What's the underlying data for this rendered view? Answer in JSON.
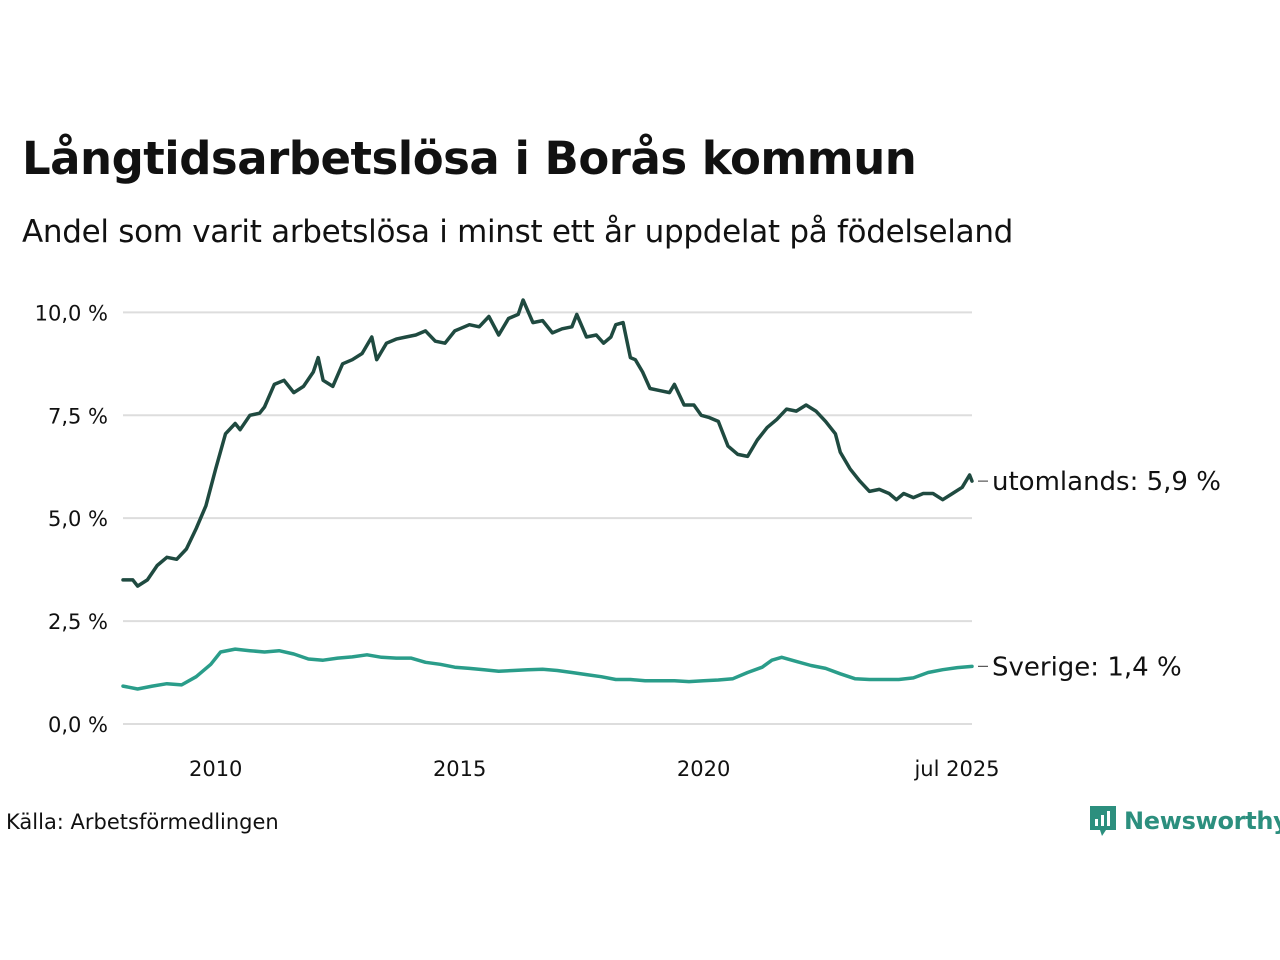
{
  "title": "Långtidsarbetslösa i Borås kommun",
  "subtitle": "Andel som varit arbetslösa i minst ett år uppdelat på födelseland",
  "source": "Källa: Arbetsförmedlingen",
  "brand": {
    "name": "Newsworthy",
    "color": "#2c8f7e",
    "icon": "newsworthy-logo-icon"
  },
  "chart_data": {
    "type": "line",
    "ylim": [
      0,
      10.3
    ],
    "xlim": [
      2008.1,
      2025.5
    ],
    "grid": true,
    "y_ticks": [
      {
        "value": 0,
        "label": "0,0 %"
      },
      {
        "value": 2.5,
        "label": "2,5 %"
      },
      {
        "value": 5,
        "label": "5,0 %"
      },
      {
        "value": 7.5,
        "label": "7,5 %"
      },
      {
        "value": 10,
        "label": "10,0 %"
      }
    ],
    "x_ticks": [
      {
        "value": 2010,
        "label": "2010"
      },
      {
        "value": 2015,
        "label": "2015"
      },
      {
        "value": 2020,
        "label": "2020"
      },
      {
        "value": 2025.5,
        "label": "jul 2025"
      }
    ],
    "series": [
      {
        "name": "utomlands",
        "end_label": "utomlands: 5,9 %",
        "color": "#1f4a40",
        "points": [
          [
            2008.1,
            3.5
          ],
          [
            2008.3,
            3.5
          ],
          [
            2008.4,
            3.35
          ],
          [
            2008.6,
            3.5
          ],
          [
            2008.8,
            3.85
          ],
          [
            2009.0,
            4.05
          ],
          [
            2009.2,
            4.0
          ],
          [
            2009.4,
            4.25
          ],
          [
            2009.6,
            4.75
          ],
          [
            2009.8,
            5.3
          ],
          [
            2010.0,
            6.2
          ],
          [
            2010.2,
            7.05
          ],
          [
            2010.4,
            7.3
          ],
          [
            2010.5,
            7.15
          ],
          [
            2010.7,
            7.5
          ],
          [
            2010.9,
            7.55
          ],
          [
            2011.0,
            7.7
          ],
          [
            2011.2,
            8.25
          ],
          [
            2011.4,
            8.35
          ],
          [
            2011.6,
            8.05
          ],
          [
            2011.8,
            8.2
          ],
          [
            2012.0,
            8.55
          ],
          [
            2012.1,
            8.9
          ],
          [
            2012.2,
            8.35
          ],
          [
            2012.4,
            8.2
          ],
          [
            2012.6,
            8.75
          ],
          [
            2012.8,
            8.85
          ],
          [
            2013.0,
            9.0
          ],
          [
            2013.2,
            9.4
          ],
          [
            2013.3,
            8.85
          ],
          [
            2013.5,
            9.25
          ],
          [
            2013.7,
            9.35
          ],
          [
            2013.9,
            9.4
          ],
          [
            2014.1,
            9.45
          ],
          [
            2014.3,
            9.55
          ],
          [
            2014.5,
            9.3
          ],
          [
            2014.7,
            9.25
          ],
          [
            2014.9,
            9.55
          ],
          [
            2015.0,
            9.6
          ],
          [
            2015.2,
            9.7
          ],
          [
            2015.4,
            9.65
          ],
          [
            2015.6,
            9.9
          ],
          [
            2015.8,
            9.45
          ],
          [
            2016.0,
            9.85
          ],
          [
            2016.2,
            9.95
          ],
          [
            2016.3,
            10.3
          ],
          [
            2016.5,
            9.75
          ],
          [
            2016.7,
            9.8
          ],
          [
            2016.9,
            9.5
          ],
          [
            2017.1,
            9.6
          ],
          [
            2017.3,
            9.65
          ],
          [
            2017.4,
            9.95
          ],
          [
            2017.6,
            9.4
          ],
          [
            2017.8,
            9.45
          ],
          [
            2017.95,
            9.25
          ],
          [
            2018.1,
            9.4
          ],
          [
            2018.2,
            9.7
          ],
          [
            2018.35,
            9.75
          ],
          [
            2018.5,
            8.9
          ],
          [
            2018.6,
            8.85
          ],
          [
            2018.75,
            8.55
          ],
          [
            2018.9,
            8.15
          ],
          [
            2019.1,
            8.1
          ],
          [
            2019.3,
            8.05
          ],
          [
            2019.4,
            8.25
          ],
          [
            2019.6,
            7.75
          ],
          [
            2019.8,
            7.75
          ],
          [
            2019.95,
            7.5
          ],
          [
            2020.1,
            7.45
          ],
          [
            2020.3,
            7.35
          ],
          [
            2020.5,
            6.75
          ],
          [
            2020.7,
            6.55
          ],
          [
            2020.9,
            6.5
          ],
          [
            2021.1,
            6.9
          ],
          [
            2021.3,
            7.2
          ],
          [
            2021.5,
            7.4
          ],
          [
            2021.7,
            7.65
          ],
          [
            2021.9,
            7.6
          ],
          [
            2022.1,
            7.75
          ],
          [
            2022.3,
            7.6
          ],
          [
            2022.5,
            7.35
          ],
          [
            2022.7,
            7.05
          ],
          [
            2022.8,
            6.6
          ],
          [
            2023.0,
            6.2
          ],
          [
            2023.2,
            5.9
          ],
          [
            2023.4,
            5.65
          ],
          [
            2023.6,
            5.7
          ],
          [
            2023.8,
            5.6
          ],
          [
            2023.95,
            5.45
          ],
          [
            2024.1,
            5.6
          ],
          [
            2024.3,
            5.5
          ],
          [
            2024.5,
            5.6
          ],
          [
            2024.7,
            5.6
          ],
          [
            2024.9,
            5.45
          ],
          [
            2025.1,
            5.6
          ],
          [
            2025.3,
            5.75
          ],
          [
            2025.4,
            5.95
          ],
          [
            2025.45,
            6.05
          ],
          [
            2025.5,
            5.9
          ]
        ]
      },
      {
        "name": "Sverige",
        "end_label": "Sverige: 1,4 %",
        "color": "#2a9d8a",
        "points": [
          [
            2008.1,
            0.92
          ],
          [
            2008.4,
            0.85
          ],
          [
            2008.7,
            0.92
          ],
          [
            2009.0,
            0.98
          ],
          [
            2009.3,
            0.95
          ],
          [
            2009.6,
            1.15
          ],
          [
            2009.9,
            1.45
          ],
          [
            2010.1,
            1.75
          ],
          [
            2010.4,
            1.82
          ],
          [
            2010.7,
            1.78
          ],
          [
            2011.0,
            1.75
          ],
          [
            2011.3,
            1.78
          ],
          [
            2011.6,
            1.7
          ],
          [
            2011.9,
            1.58
          ],
          [
            2012.2,
            1.55
          ],
          [
            2012.5,
            1.6
          ],
          [
            2012.8,
            1.63
          ],
          [
            2013.1,
            1.68
          ],
          [
            2013.4,
            1.62
          ],
          [
            2013.7,
            1.6
          ],
          [
            2014.0,
            1.6
          ],
          [
            2014.3,
            1.5
          ],
          [
            2014.6,
            1.45
          ],
          [
            2014.9,
            1.38
          ],
          [
            2015.2,
            1.35
          ],
          [
            2015.5,
            1.32
          ],
          [
            2015.8,
            1.28
          ],
          [
            2016.1,
            1.3
          ],
          [
            2016.4,
            1.32
          ],
          [
            2016.7,
            1.33
          ],
          [
            2017.0,
            1.3
          ],
          [
            2017.3,
            1.25
          ],
          [
            2017.6,
            1.2
          ],
          [
            2017.9,
            1.15
          ],
          [
            2018.2,
            1.08
          ],
          [
            2018.5,
            1.08
          ],
          [
            2018.8,
            1.05
          ],
          [
            2019.1,
            1.05
          ],
          [
            2019.4,
            1.05
          ],
          [
            2019.7,
            1.03
          ],
          [
            2020.0,
            1.05
          ],
          [
            2020.3,
            1.07
          ],
          [
            2020.6,
            1.1
          ],
          [
            2020.9,
            1.25
          ],
          [
            2021.2,
            1.38
          ],
          [
            2021.4,
            1.55
          ],
          [
            2021.6,
            1.62
          ],
          [
            2021.9,
            1.52
          ],
          [
            2022.2,
            1.42
          ],
          [
            2022.5,
            1.35
          ],
          [
            2022.8,
            1.22
          ],
          [
            2023.1,
            1.1
          ],
          [
            2023.4,
            1.08
          ],
          [
            2023.7,
            1.08
          ],
          [
            2024.0,
            1.08
          ],
          [
            2024.3,
            1.12
          ],
          [
            2024.6,
            1.25
          ],
          [
            2024.9,
            1.32
          ],
          [
            2025.2,
            1.37
          ],
          [
            2025.5,
            1.4
          ]
        ]
      }
    ]
  }
}
